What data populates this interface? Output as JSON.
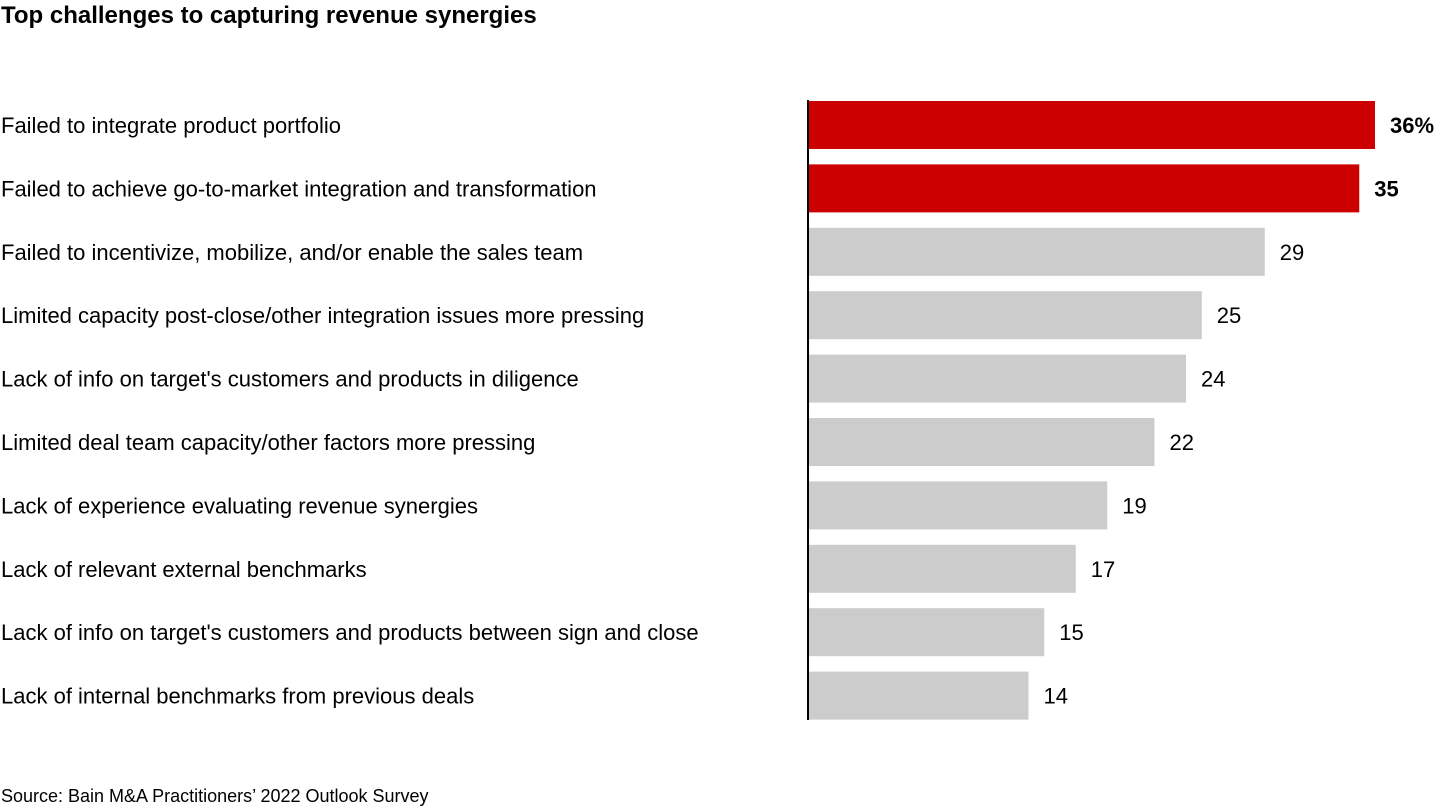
{
  "chart_data": {
    "type": "bar",
    "orientation": "horizontal",
    "title": "Top challenges to capturing revenue synergies",
    "categories": [
      "Failed to integrate product portfolio",
      "Failed to achieve go-to-market integration and transformation",
      "Failed to incentivize, mobilize, and/or enable the sales team",
      "Limited capacity post-close/other integration issues more pressing",
      "Lack of info on target's customers and products in diligence",
      "Limited deal team capacity/other factors more pressing",
      "Lack of experience evaluating revenue synergies",
      "Lack of relevant external benchmarks",
      "Lack of info on target's customers and products between sign and close",
      "Lack of internal benchmarks from previous deals"
    ],
    "values": [
      36,
      35,
      29,
      25,
      24,
      22,
      19,
      17,
      15,
      14
    ],
    "value_labels": [
      "36%",
      "35",
      "29",
      "25",
      "24",
      "22",
      "19",
      "17",
      "15",
      "14"
    ],
    "highlighted": [
      true,
      true,
      false,
      false,
      false,
      false,
      false,
      false,
      false,
      false
    ],
    "xlim": [
      0,
      36
    ],
    "grid": false,
    "legend": "none",
    "colors": {
      "highlight": "#cc0000",
      "default": "#cccccc",
      "axis": "#000000"
    }
  },
  "source": "Source: Bain M&A Practitioners’ 2022 Outlook Survey"
}
